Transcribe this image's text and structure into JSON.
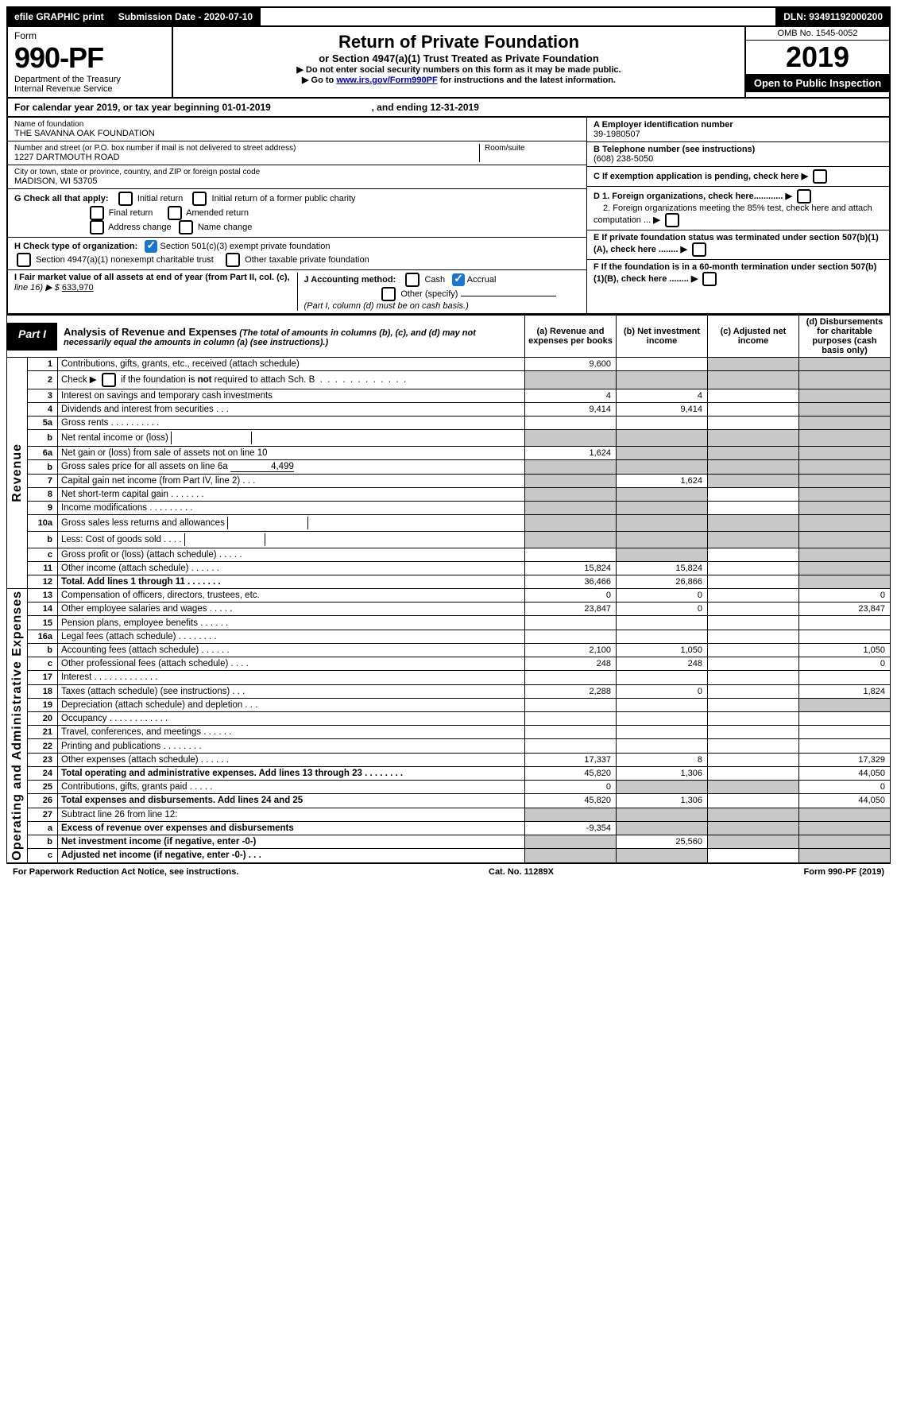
{
  "colors": {
    "text": "#000000",
    "bg": "#ffffff",
    "grey_cell": "#c8c8c8",
    "link": "#0000cc",
    "check_blue": "#1976d2"
  },
  "top_bar": {
    "efile": "efile GRAPHIC print",
    "submission": "Submission Date - 2020-07-10",
    "dln": "DLN: 93491192000200"
  },
  "header": {
    "form_word": "Form",
    "form_no": "990-PF",
    "dept": "Department of the Treasury",
    "irs": "Internal Revenue Service",
    "title": "Return of Private Foundation",
    "subtitle": "or Section 4947(a)(1) Trust Treated as Private Foundation",
    "instr1": "▶ Do not enter social security numbers on this form as it may be made public.",
    "instr2_prefix": "▶ Go to ",
    "instr2_link": "www.irs.gov/Form990PF",
    "instr2_suffix": " for instructions and the latest information.",
    "omb": "OMB No. 1545-0052",
    "year": "2019",
    "open": "Open to Public Inspection"
  },
  "cal": {
    "text_a": "For calendar year 2019, or tax year beginning 01-01-2019",
    "text_b": ", and ending 12-31-2019"
  },
  "id": {
    "name_label": "Name of foundation",
    "name": "THE SAVANNA OAK FOUNDATION",
    "addr_label": "Number and street (or P.O. box number if mail is not delivered to street address)",
    "room_label": "Room/suite",
    "addr": "1227 DARTMOUTH ROAD",
    "city_label": "City or town, state or province, country, and ZIP or foreign postal code",
    "city": "MADISON, WI  53705",
    "a_label": "A Employer identification number",
    "a_val": "39-1980507",
    "b_label": "B Telephone number (see instructions)",
    "b_val": "(608) 238-5050",
    "c_label": "C If exemption application is pending, check here",
    "d1_label": "D 1. Foreign organizations, check here............",
    "d2_label": "2. Foreign organizations meeting the 85% test, check here and attach computation ...",
    "e_label": "E  If private foundation status was terminated under section 507(b)(1)(A), check here ........",
    "f_label": "F  If the foundation is in a 60-month termination under section 507(b)(1)(B), check here ........",
    "g_label": "G Check all that apply:",
    "g_opts": {
      "initial": "Initial return",
      "initial_former": "Initial return of a former public charity",
      "final": "Final return",
      "amended": "Amended return",
      "addr_change": "Address change",
      "name_change": "Name change"
    },
    "h_label": "H Check type of organization:",
    "h_opts": {
      "501c3": "Section 501(c)(3) exempt private foundation",
      "4947": "Section 4947(a)(1) nonexempt charitable trust",
      "other_tax": "Other taxable private foundation"
    },
    "i_label": "I Fair market value of all assets at end of year (from Part II, col. (c),",
    "i_line16": "line 16) ▶ $",
    "i_val": "633,970",
    "j_label": "J Accounting method:",
    "j_cash": "Cash",
    "j_accrual": "Accrual",
    "j_other": "Other (specify)",
    "j_note": "(Part I, column (d) must be on cash basis.)"
  },
  "part1": {
    "label": "Part I",
    "title": "Analysis of Revenue and Expenses",
    "note": "(The total of amounts in columns (b), (c), and (d) may not necessarily equal the amounts in column (a) (see instructions).)",
    "col_a": "(a)   Revenue and expenses per books",
    "col_b": "(b)  Net investment income",
    "col_c": "(c)  Adjusted net income",
    "col_d": "(d)  Disbursements for charitable purposes (cash basis only)"
  },
  "side_labels": {
    "revenue": "Revenue",
    "expenses": "Operating and Administrative Expenses"
  },
  "rows": [
    {
      "n": "1",
      "desc": "Contributions, gifts, grants, etc., received (attach schedule)",
      "a": "9,600",
      "b": "",
      "c_grey": true,
      "d_grey": true
    },
    {
      "n": "2",
      "desc": "Check ▶  if the foundation is not required to attach Sch. B",
      "is_check": true,
      "a_grey": true,
      "b_grey": true,
      "c_grey": true,
      "d_grey": true
    },
    {
      "n": "3",
      "desc": "Interest on savings and temporary cash investments",
      "a": "4",
      "b": "4",
      "c": "",
      "d_grey": true
    },
    {
      "n": "4",
      "desc": "Dividends and interest from securities   .   .   .",
      "a": "9,414",
      "b": "9,414",
      "c": "",
      "d_grey": true
    },
    {
      "n": "5a",
      "desc": "Gross rents     .   .   .   .   .   .   .   .   .   .",
      "a": "",
      "b": "",
      "c": "",
      "d_grey": true
    },
    {
      "n": "b",
      "desc": "Net rental income or (loss)  ",
      "has_inline": true,
      "a_grey": true,
      "b_grey": true,
      "c_grey": true,
      "d_grey": true
    },
    {
      "n": "6a",
      "desc": "Net gain or (loss) from sale of assets not on line 10",
      "a": "1,624",
      "b_grey": true,
      "c_grey": true,
      "d_grey": true
    },
    {
      "n": "b",
      "desc": "Gross sales price for all assets on line 6a ",
      "inline_val": "4,499",
      "a_grey": true,
      "b_grey": true,
      "c_grey": true,
      "d_grey": true
    },
    {
      "n": "7",
      "desc": "Capital gain net income (from Part IV, line 2)   .   .   .",
      "a_grey": true,
      "b": "1,624",
      "c_grey": true,
      "d_grey": true
    },
    {
      "n": "8",
      "desc": "Net short-term capital gain   .   .   .   .   .   .   .",
      "a_grey": true,
      "b_grey": true,
      "c": "",
      "d_grey": true
    },
    {
      "n": "9",
      "desc": "Income modifications  .   .   .   .   .   .   .   .   .",
      "a_grey": true,
      "b_grey": true,
      "c": "",
      "d_grey": true
    },
    {
      "n": "10a",
      "desc": "Gross sales less returns and allowances",
      "has_inline": true,
      "a_grey": true,
      "b_grey": true,
      "c_grey": true,
      "d_grey": true
    },
    {
      "n": "b",
      "desc": "Less: Cost of goods sold     .   .   .   .",
      "has_inline": true,
      "a_grey": true,
      "b_grey": true,
      "c_grey": true,
      "d_grey": true
    },
    {
      "n": "c",
      "desc": "Gross profit or (loss) (attach schedule)   .   .   .   .   .",
      "a": "",
      "b_grey": true,
      "c": "",
      "d_grey": true
    },
    {
      "n": "11",
      "desc": "Other income (attach schedule)   .   .   .   .   .   .",
      "a": "15,824",
      "b": "15,824",
      "c": "",
      "d_grey": true
    },
    {
      "n": "12",
      "desc": "Total. Add lines 1 through 11   .   .   .   .   .   .   .",
      "bold": true,
      "a": "36,466",
      "b": "26,866",
      "c": "",
      "d_grey": true
    },
    {
      "n": "13",
      "desc": "Compensation of officers, directors, trustees, etc.",
      "a": "0",
      "b": "0",
      "c": "",
      "d": "0",
      "section": "exp"
    },
    {
      "n": "14",
      "desc": "Other employee salaries and wages   .   .   .   .   .",
      "a": "23,847",
      "b": "0",
      "c": "",
      "d": "23,847"
    },
    {
      "n": "15",
      "desc": "Pension plans, employee benefits   .   .   .   .   .   .",
      "a": "",
      "b": "",
      "c": "",
      "d": ""
    },
    {
      "n": "16a",
      "desc": "Legal fees (attach schedule)  .   .   .   .   .   .   .   .",
      "a": "",
      "b": "",
      "c": "",
      "d": ""
    },
    {
      "n": "b",
      "desc": "Accounting fees (attach schedule)   .   .   .   .   .   .",
      "a": "2,100",
      "b": "1,050",
      "c": "",
      "d": "1,050"
    },
    {
      "n": "c",
      "desc": "Other professional fees (attach schedule)    .   .   .   .",
      "a": "248",
      "b": "248",
      "c": "",
      "d": "0"
    },
    {
      "n": "17",
      "desc": "Interest   .   .   .   .   .   .   .   .   .   .   .   .   .",
      "a": "",
      "b": "",
      "c": "",
      "d": ""
    },
    {
      "n": "18",
      "desc": "Taxes (attach schedule) (see instructions)    .    .    .",
      "a": "2,288",
      "b": "0",
      "c": "",
      "d": "1,824"
    },
    {
      "n": "19",
      "desc": "Depreciation (attach schedule) and depletion    .   .   .",
      "a": "",
      "b": "",
      "c": "",
      "d_grey": true
    },
    {
      "n": "20",
      "desc": "Occupancy  .   .   .   .   .   .   .   .   .   .   .   .",
      "a": "",
      "b": "",
      "c": "",
      "d": ""
    },
    {
      "n": "21",
      "desc": "Travel, conferences, and meetings   .   .   .   .   .   .",
      "a": "",
      "b": "",
      "c": "",
      "d": ""
    },
    {
      "n": "22",
      "desc": "Printing and publications  .   .   .   .   .   .   .   .",
      "a": "",
      "b": "",
      "c": "",
      "d": ""
    },
    {
      "n": "23",
      "desc": "Other expenses (attach schedule)   .   .   .   .   .   .",
      "a": "17,337",
      "b": "8",
      "c": "",
      "d": "17,329"
    },
    {
      "n": "24",
      "desc": "Total operating and administrative expenses. Add lines 13 through 23    .    .    .    .    .    .    .    .",
      "bold": true,
      "a": "45,820",
      "b": "1,306",
      "c": "",
      "d": "44,050"
    },
    {
      "n": "25",
      "desc": "Contributions, gifts, grants paid     .    .    .    .    .",
      "a": "0",
      "b_grey": true,
      "c_grey": true,
      "d": "0"
    },
    {
      "n": "26",
      "desc": "Total expenses and disbursements. Add lines 24 and 25",
      "bold": true,
      "a": "45,820",
      "b": "1,306",
      "c": "",
      "d": "44,050"
    },
    {
      "n": "27",
      "desc": "Subtract line 26 from line 12:",
      "a_grey": true,
      "b_grey": true,
      "c_grey": true,
      "d_grey": true
    },
    {
      "n": "a",
      "desc": "Excess of revenue over expenses and disbursements",
      "bold": true,
      "a": "-9,354",
      "b_grey": true,
      "c_grey": true,
      "d_grey": true
    },
    {
      "n": "b",
      "desc": "Net investment income (if negative, enter -0-)",
      "bold": true,
      "a_grey": true,
      "b": "25,560",
      "c_grey": true,
      "d_grey": true
    },
    {
      "n": "c",
      "desc": "Adjusted net income (if negative, enter -0-)   .   .   .",
      "bold": true,
      "a_grey": true,
      "b_grey": true,
      "c": "",
      "d_grey": true
    }
  ],
  "footer": {
    "left": "For Paperwork Reduction Act Notice, see instructions.",
    "mid": "Cat. No. 11289X",
    "right": "Form 990-PF (2019)"
  }
}
